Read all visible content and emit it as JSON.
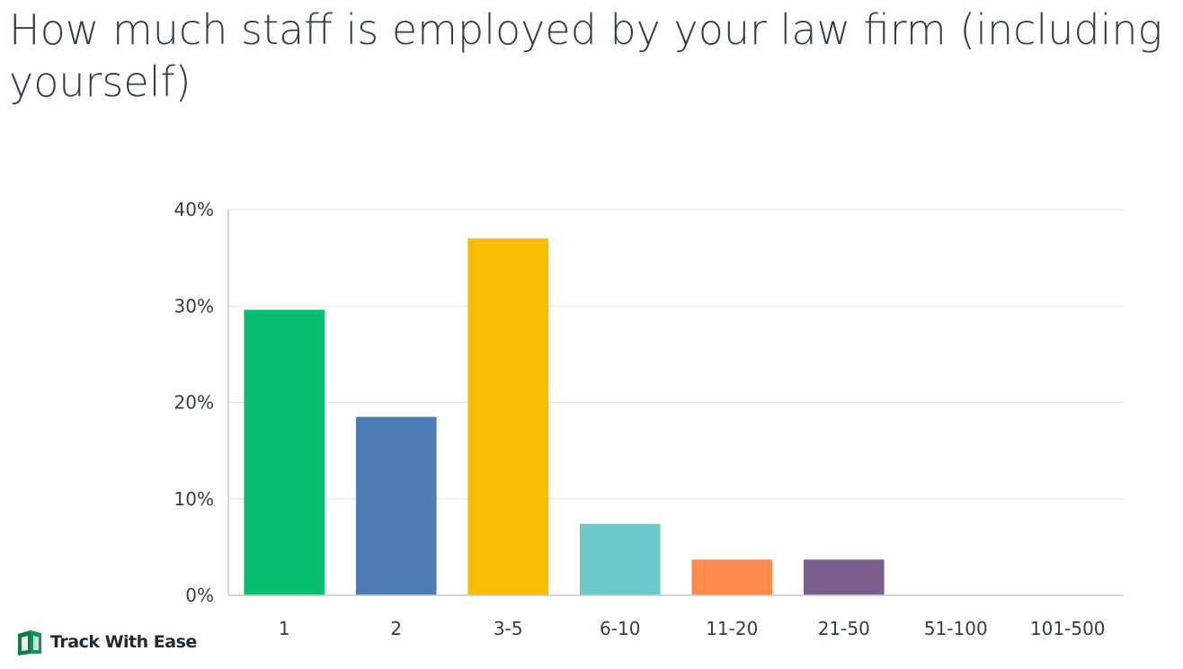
{
  "chart_data": {
    "type": "bar",
    "title": "How much staff is employed by your law firm (including yourself)",
    "categories": [
      "1",
      "2",
      "3-5",
      "6-10",
      "11-20",
      "21-50",
      "51-100",
      "101-500"
    ],
    "values": [
      29.6,
      18.5,
      37.0,
      7.4,
      3.7,
      3.7,
      0,
      0
    ],
    "colors": [
      "#05bf6e",
      "#507cb6",
      "#f7bd00",
      "#6bc8cd",
      "#ff8b4f",
      "#7d5e90",
      "#d25f90",
      "#a0a0a0"
    ],
    "ylim": [
      0,
      40
    ],
    "yticks": [
      0,
      10,
      20,
      30,
      40
    ],
    "ytick_labels": [
      "0%",
      "10%",
      "20%",
      "30%",
      "40%"
    ],
    "grid": true,
    "xlabel": "",
    "ylabel": ""
  },
  "brand": {
    "name": "Track With Ease",
    "accent": "#0f7a45"
  }
}
